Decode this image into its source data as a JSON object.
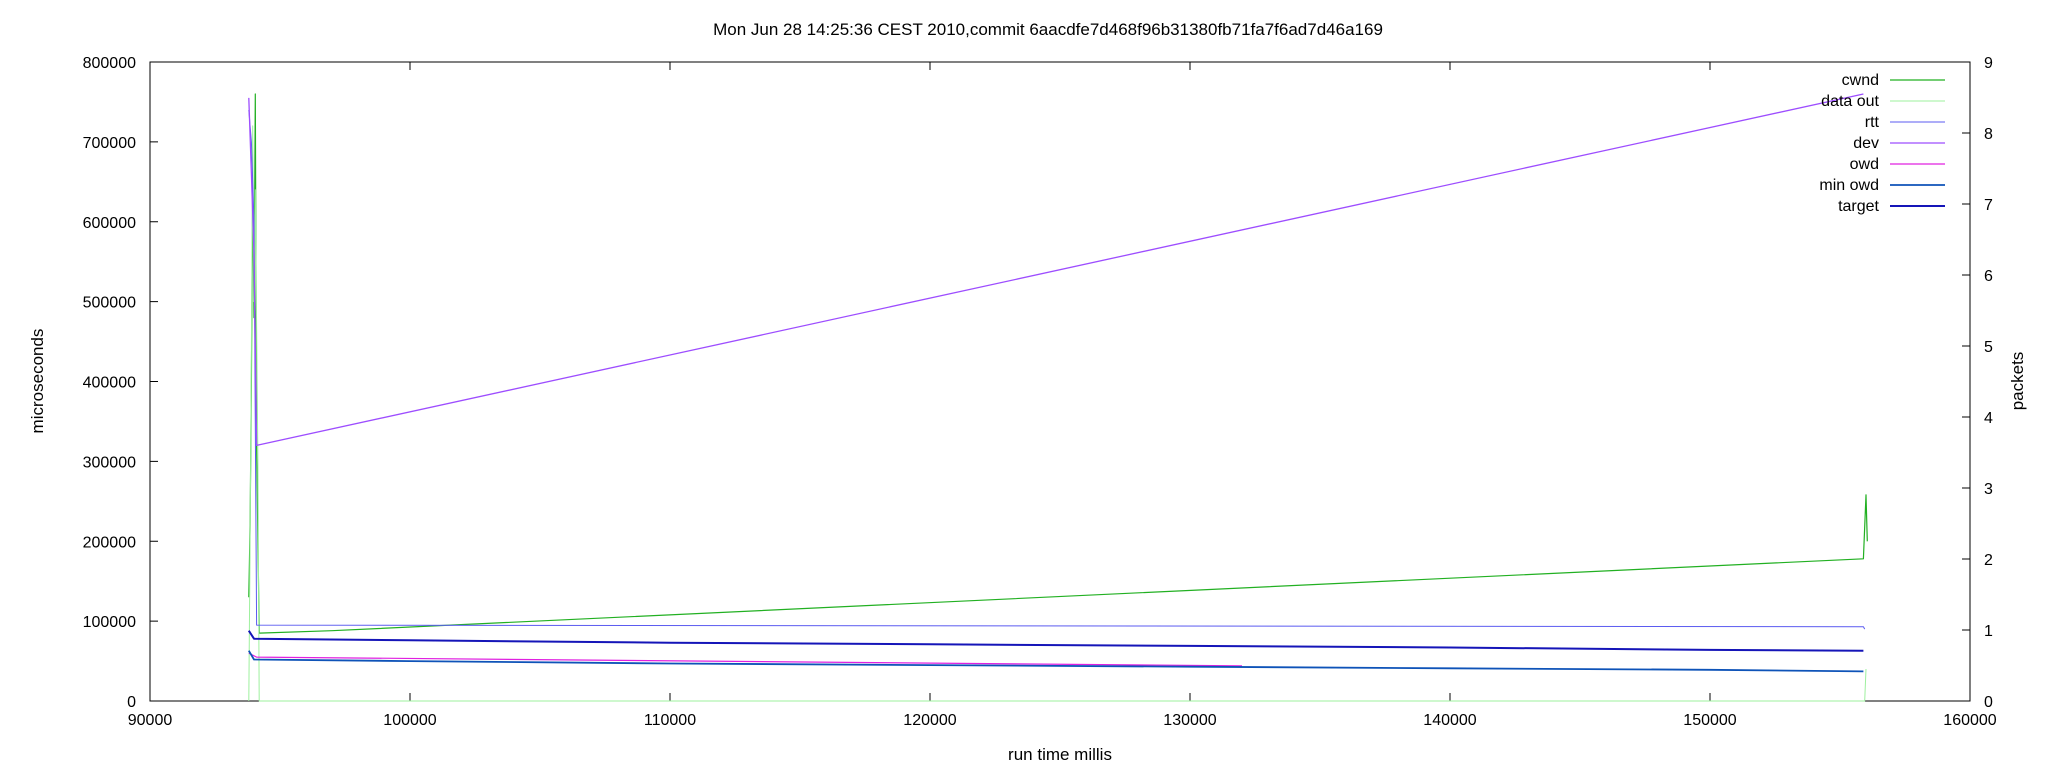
{
  "chart_data": {
    "type": "line",
    "title": "Mon Jun 28 14:25:36 CEST 2010,commit 6aacdfe7d468f96b31380fb71fa7f6ad7d46a169",
    "xlabel": "run time millis",
    "ylabel": "microseconds",
    "y2label": "packets",
    "xlim": [
      90000,
      160000
    ],
    "ylim": [
      0,
      800000
    ],
    "y2lim": [
      0,
      9
    ],
    "grid": false,
    "legend_position": "top-right",
    "x_ticks": [
      "90000",
      "100000",
      "110000",
      "120000",
      "130000",
      "140000",
      "150000",
      "160000"
    ],
    "y_ticks": [
      "0",
      "100000",
      "200000",
      "300000",
      "400000",
      "500000",
      "600000",
      "700000",
      "800000"
    ],
    "y2_ticks": [
      "0",
      "1",
      "2",
      "3",
      "4",
      "5",
      "6",
      "7",
      "8",
      "9"
    ],
    "series": [
      {
        "name": "cwnd",
        "color": "#22b022",
        "width": 1.2,
        "points": [
          [
            93800,
            130000
          ],
          [
            93850,
            220000
          ],
          [
            93900,
            400000
          ],
          [
            93950,
            650000
          ],
          [
            94000,
            480000
          ],
          [
            94050,
            760000
          ],
          [
            94100,
            320000
          ],
          [
            94200,
            85000
          ],
          [
            97000,
            88000
          ],
          [
            155900,
            178000
          ],
          [
            156000,
            258000
          ],
          [
            156050,
            200000
          ]
        ]
      },
      {
        "name": "data out",
        "color": "#9ef09e",
        "width": 1,
        "points": [
          [
            93800,
            0
          ],
          [
            93850,
            200000
          ],
          [
            93900,
            440000
          ],
          [
            93950,
            720000
          ],
          [
            94000,
            500000
          ],
          [
            94050,
            640000
          ],
          [
            94150,
            300000
          ],
          [
            94200,
            0
          ],
          [
            155950,
            0
          ],
          [
            156000,
            40000
          ]
        ]
      },
      {
        "name": "rtt",
        "color": "#5b5bf0",
        "width": 1,
        "points": [
          [
            93800,
            740000
          ],
          [
            93900,
            700000
          ],
          [
            94000,
            600000
          ],
          [
            94100,
            95000
          ],
          [
            155900,
            93000
          ],
          [
            155950,
            90000
          ]
        ]
      },
      {
        "name": "dev",
        "color": "#9d4dff",
        "width": 1.3,
        "points": [
          [
            93800,
            755000
          ],
          [
            93900,
            660000
          ],
          [
            94000,
            560000
          ],
          [
            94100,
            320000
          ],
          [
            155900,
            760000
          ]
        ]
      },
      {
        "name": "owd",
        "color": "#e020e0",
        "width": 1.2,
        "points": [
          [
            93800,
            60000
          ],
          [
            94100,
            55000
          ],
          [
            132000,
            44000
          ]
        ]
      },
      {
        "name": "min owd",
        "color": "#0e53b8",
        "width": 1.8,
        "points": [
          [
            93800,
            63000
          ],
          [
            94000,
            52000
          ],
          [
            100000,
            50000
          ],
          [
            110000,
            47000
          ],
          [
            120000,
            45000
          ],
          [
            130000,
            43000
          ],
          [
            140000,
            41000
          ],
          [
            150000,
            39000
          ],
          [
            155900,
            37000
          ]
        ]
      },
      {
        "name": "target",
        "color": "#1515b8",
        "width": 2,
        "points": [
          [
            93800,
            88000
          ],
          [
            94000,
            78000
          ],
          [
            100000,
            76000
          ],
          [
            110000,
            73000
          ],
          [
            120000,
            71000
          ],
          [
            130000,
            69000
          ],
          [
            140000,
            67000
          ],
          [
            150000,
            64000
          ],
          [
            155900,
            63000
          ]
        ]
      }
    ]
  }
}
